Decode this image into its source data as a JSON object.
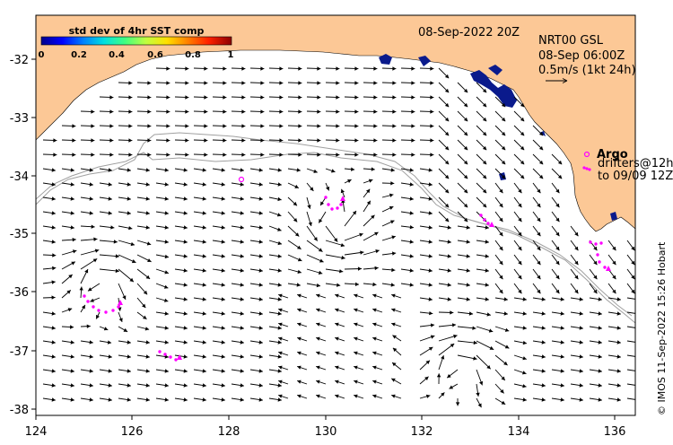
{
  "map": {
    "date_title": "08-Sep-2022 20Z",
    "product": "NRT00 GSL",
    "valid_time": "08-Sep 06:00Z",
    "scale_label": "0.5m/s (1kt 24h)",
    "argo_label": "Argo",
    "drifters_label": "drifters@12h",
    "drifters_to": "to 09/09 12Z",
    "credit": "© IMOS 11-Sep-2022 15:26 Hobart",
    "colors": {
      "land": "#fcc896",
      "isobath": "#a0a0a0",
      "sst_high_std": "#0a1a8c",
      "drifter": "#ff00ff",
      "vector": "#000000"
    },
    "longitude_ticks": [
      "124",
      "126",
      "128",
      "130",
      "132",
      "134",
      "136"
    ],
    "latitude_ticks": [
      "-32",
      "-33",
      "-34",
      "-35",
      "-36",
      "-37",
      "-38"
    ],
    "colorbar": {
      "title": "std dev of 4hr SST comp",
      "ticks": [
        "0",
        "0.2",
        "0.4",
        "0.6",
        "0.8",
        "1"
      ],
      "colormap": [
        "#00008c",
        "#0000ff",
        "#0080ff",
        "#00e0e0",
        "#40ff80",
        "#c0ff40",
        "#ffe000",
        "#ff8000",
        "#ff2000",
        "#8c0000"
      ]
    }
  }
}
